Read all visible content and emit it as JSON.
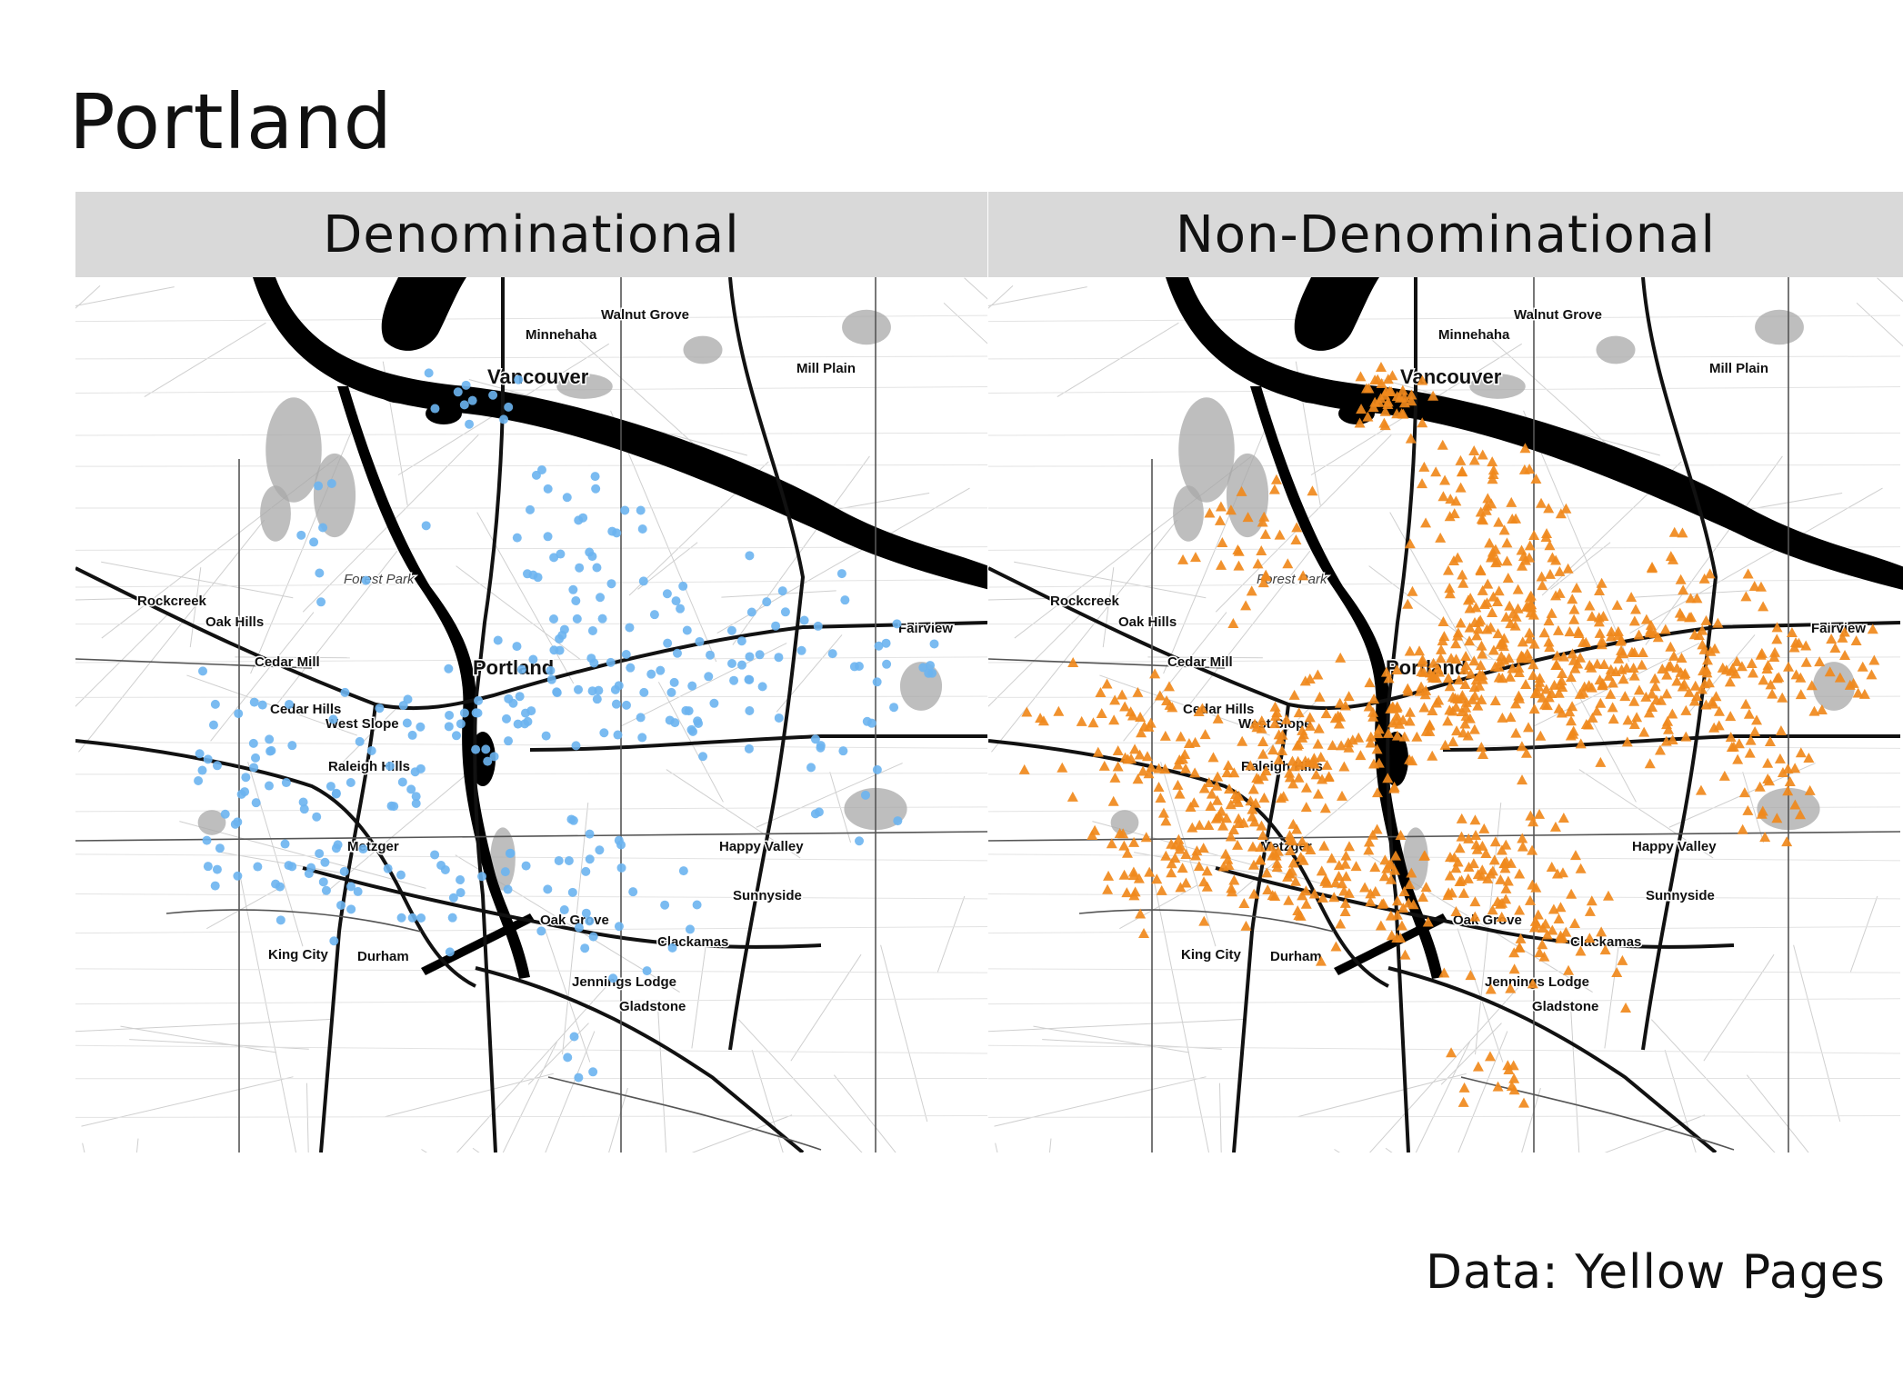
{
  "title": "Portland",
  "panels": [
    {
      "label": "Denominational",
      "marker": "circle",
      "color": "#6cb4f0"
    },
    {
      "label": "Non-Denominational",
      "marker": "triangle",
      "color": "#f0891c"
    }
  ],
  "caption": "Data: Yellow Pages",
  "map_labels": {
    "walnut_grove": "Walnut Grove",
    "minnehaha": "Minnehaha",
    "vancouver": "Vancouver",
    "mill_plain": "Mill Plain",
    "forest_park": "Forest Park",
    "rockcreek": "Rockcreek",
    "oak_hills": "Oak Hills",
    "cedar_mill": "Cedar Mill",
    "portland": "Portland",
    "fairview": "Fairview",
    "cedar_hills": "Cedar Hills",
    "west_slope": "West Slope",
    "raleigh_hills": "Raleigh Hills",
    "metzger": "Metzger",
    "happy_valley": "Happy Valley",
    "sunnyside": "Sunnyside",
    "oak_grove": "Oak Grove",
    "king_city": "King City",
    "durham": "Durham",
    "clackamas": "Clackamas",
    "jennings_lodge": "Jennings Lodge",
    "gladstone": "Gladstone"
  },
  "colors": {
    "strip": "#d9d9d9",
    "water": "#000000",
    "park": "#a8a8a8",
    "road": "#111111"
  }
}
